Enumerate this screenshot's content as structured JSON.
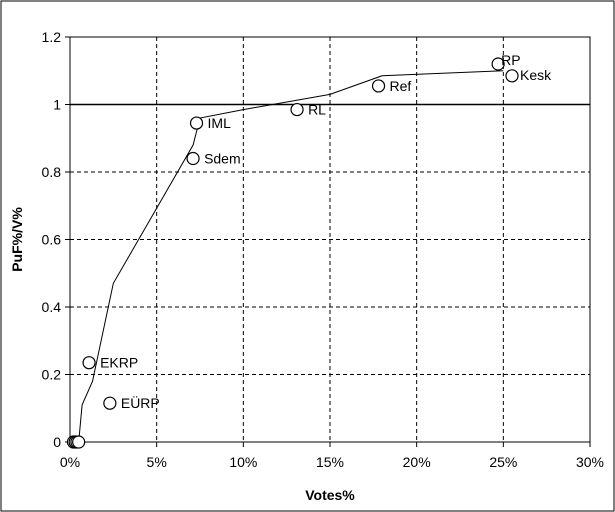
{
  "chart_data": {
    "type": "scatter",
    "title": "",
    "xlabel": "Votes%",
    "ylabel": "PuF%/V%",
    "xlim": [
      0,
      0.3
    ],
    "ylim": [
      0,
      1.2
    ],
    "x_ticks": [
      0,
      0.05,
      0.1,
      0.15,
      0.2,
      0.25,
      0.3
    ],
    "x_tick_labels": [
      "0%",
      "5%",
      "10%",
      "15%",
      "20%",
      "25%",
      "30%"
    ],
    "y_ticks": [
      0,
      0.2,
      0.4,
      0.6,
      0.8,
      1.0,
      1.2
    ],
    "y_tick_labels": [
      "0",
      "0.2",
      "0.4",
      "0.6",
      "0.8",
      "1",
      "1.2"
    ],
    "grid": "dashed",
    "reference_line": 1,
    "points": [
      {
        "label": "RP",
        "x": 0.247,
        "y": 1.12
      },
      {
        "label": "Kesk",
        "x": 0.255,
        "y": 1.085
      },
      {
        "label": "Ref",
        "x": 0.178,
        "y": 1.055
      },
      {
        "label": "RL",
        "x": 0.131,
        "y": 0.985
      },
      {
        "label": "IML",
        "x": 0.073,
        "y": 0.945
      },
      {
        "label": "Sdem",
        "x": 0.071,
        "y": 0.84
      },
      {
        "label": "EKRP",
        "x": 0.011,
        "y": 0.235
      },
      {
        "label": "EÜRP",
        "x": 0.023,
        "y": 0.115
      },
      {
        "label": "",
        "x": 0.002,
        "y": 0.0
      },
      {
        "label": "",
        "x": 0.003,
        "y": 0.0
      },
      {
        "label": "",
        "x": 0.004,
        "y": 0.0
      },
      {
        "label": "",
        "x": 0.005,
        "y": 0.0
      }
    ],
    "curve": [
      {
        "x": 0.0,
        "y": 0.0
      },
      {
        "x": 0.005,
        "y": 0.0
      },
      {
        "x": 0.007,
        "y": 0.11
      },
      {
        "x": 0.013,
        "y": 0.18
      },
      {
        "x": 0.025,
        "y": 0.47
      },
      {
        "x": 0.071,
        "y": 0.88
      },
      {
        "x": 0.075,
        "y": 0.96
      },
      {
        "x": 0.1,
        "y": 0.985
      },
      {
        "x": 0.15,
        "y": 1.03
      },
      {
        "x": 0.18,
        "y": 1.085
      },
      {
        "x": 0.25,
        "y": 1.1
      }
    ]
  }
}
